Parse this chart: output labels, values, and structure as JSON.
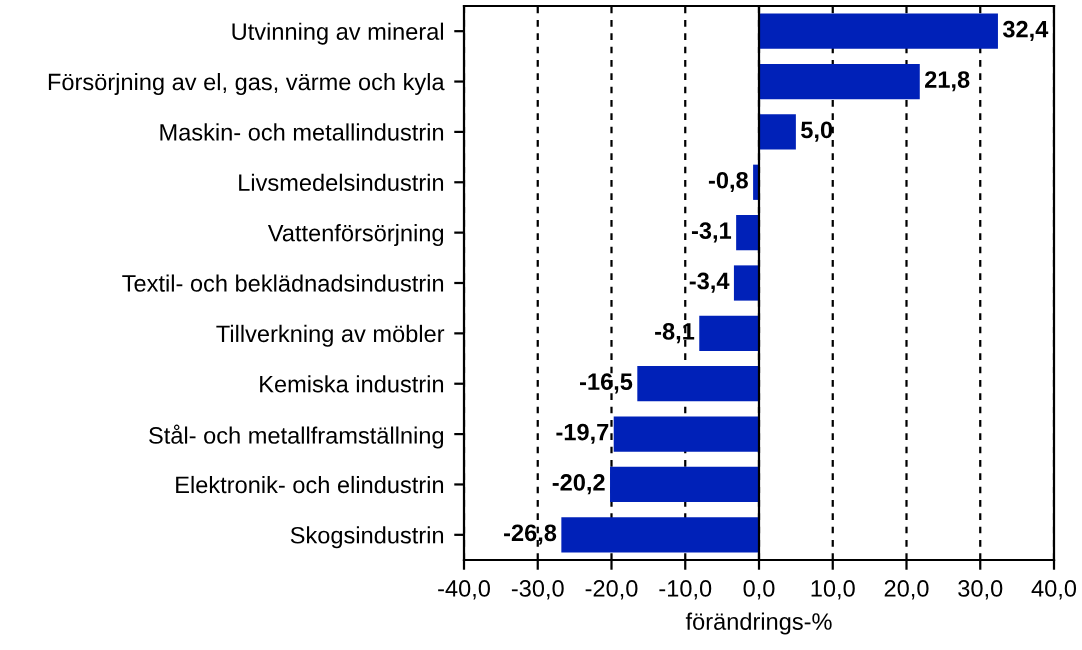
{
  "chart_data": {
    "type": "bar",
    "orientation": "horizontal",
    "xlabel": "förändrings-%",
    "categories": [
      "Utvinning av mineral",
      "Försörjning av el, gas, värme och kyla",
      "Maskin- och metallindustrin",
      "Livsmedelsindustrin",
      "Vattenförsörjning",
      "Textil- och beklädnadsindustrin",
      "Tillverkning av möbler",
      "Kemiska industrin",
      "Stål- och metallframställning",
      "Elektronik- och elindustrin",
      "Skogsindustrin"
    ],
    "values": [
      32.4,
      21.8,
      5.0,
      -0.8,
      -3.1,
      -3.4,
      -8.1,
      -16.5,
      -19.7,
      -20.2,
      -26.8
    ],
    "value_labels": [
      "32,4",
      "21,8",
      "5,0",
      "-0,8",
      "-3,1",
      "-3,4",
      "-8,1",
      "-16,5",
      "-19,7",
      "-20,2",
      "-26,8"
    ],
    "color": "#0021b8",
    "xlim": [
      -40,
      40
    ],
    "xticks": [
      {
        "value": -40,
        "label": "-40,0"
      },
      {
        "value": -30,
        "label": "-30,0"
      },
      {
        "value": -20,
        "label": "-20,0"
      },
      {
        "value": -10,
        "label": "-10,0"
      },
      {
        "value": 0,
        "label": "0,0"
      },
      {
        "value": 10,
        "label": "10,0"
      },
      {
        "value": 20,
        "label": "20,0"
      },
      {
        "value": 30,
        "label": "30,0"
      },
      {
        "value": 40,
        "label": "40,0"
      }
    ],
    "grid": "x",
    "legend": false
  }
}
